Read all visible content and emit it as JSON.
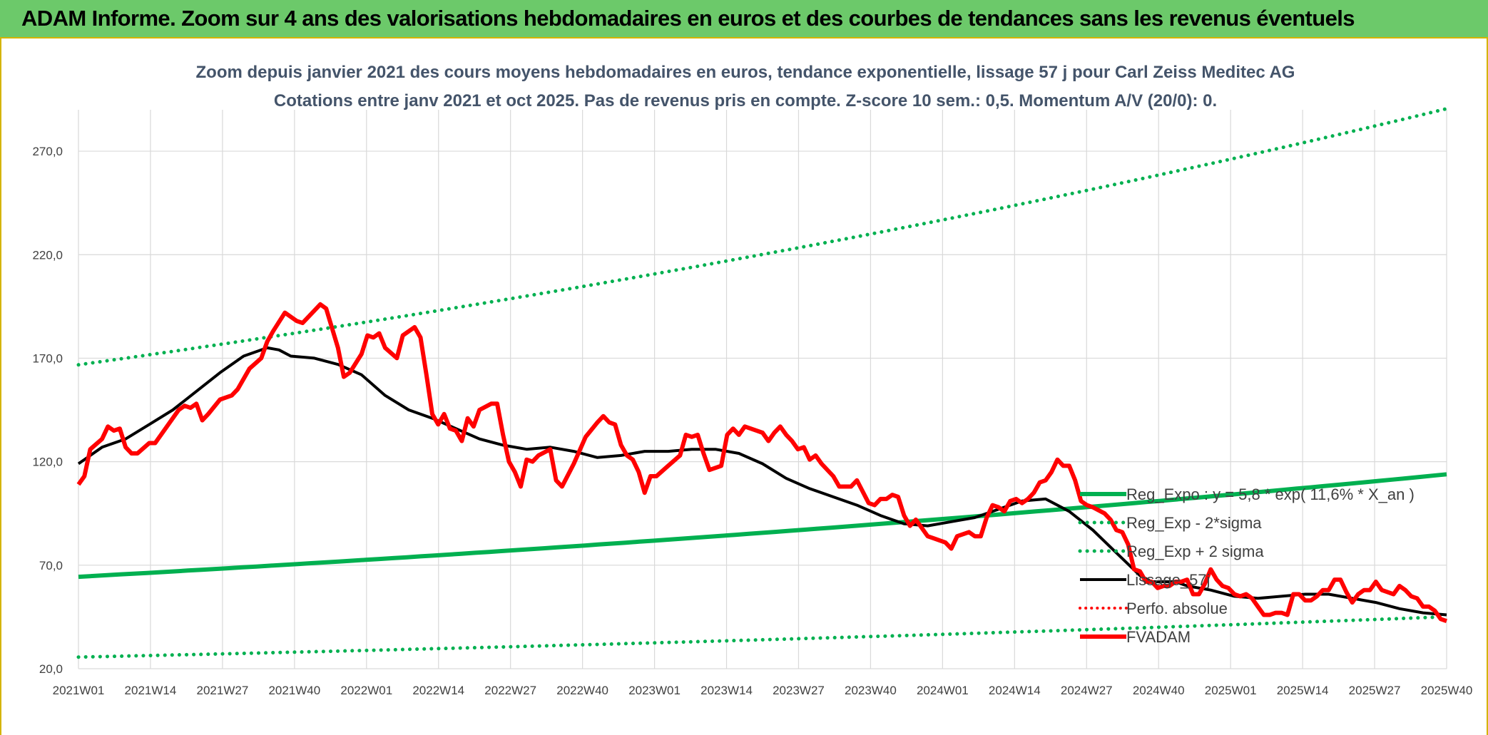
{
  "header": {
    "title": "ADAM Informe. Zoom sur 4 ans des valorisations hebdomadaires en euros et des courbes de tendances sans les revenus éventuels"
  },
  "colors": {
    "banner": "#6cc96a",
    "trend": "#00b050",
    "price": "#ff0000",
    "smooth": "#000000",
    "grid": "#d9d9d9"
  },
  "chart_data": {
    "type": "line",
    "title": "Zoom depuis janvier 2021 des cours moyens hebdomadaires en euros, tendance exponentielle, lissage 57 j pour Carl Zeiss Meditec AG",
    "subtitle": "Cotations entre janv 2021 et oct 2025. Pas de revenus pris en compte. Z-score 10 sem.: 0,5. Momentum A/V (20/0): 0.",
    "ylim": [
      20,
      290
    ],
    "y_ticks": [
      20,
      70,
      120,
      170,
      220,
      270
    ],
    "y_tick_labels": [
      "20,0",
      "70,0",
      "120,0",
      "170,0",
      "220,0",
      "270,0"
    ],
    "x_tick_labels": [
      "2021W01",
      "2021W14",
      "2021W27",
      "2021W40",
      "2022W01",
      "2022W14",
      "2022W27",
      "2022W40",
      "2023W01",
      "2023W14",
      "2023W27",
      "2023W40",
      "2024W01",
      "2024W14",
      "2024W27",
      "2024W40",
      "2025W01",
      "2025W14",
      "2025W27",
      "2025W40"
    ],
    "grid": true,
    "legend_position": "right-middle",
    "legend": [
      {
        "name": "Reg_Expo : y = 5,8 * exp( 11,6% *  X_an )",
        "style": "solid-green"
      },
      {
        "name": "Reg_Exp - 2*sigma",
        "style": "dotted-green"
      },
      {
        "name": "Reg_Exp + 2 sigma",
        "style": "dotted-green"
      },
      {
        "name": "Lissage_57j",
        "style": "solid-black"
      },
      {
        "name": "Perfo. absolue",
        "style": "dotted-red"
      },
      {
        "name": "FVADAM",
        "style": "solid-red"
      }
    ],
    "series": [
      {
        "name": "Reg_Expo",
        "start": 64.4,
        "end": 113.9
      },
      {
        "name": "Reg_Exp - 2*sigma",
        "start": 25.6,
        "end": 45.1
      },
      {
        "name": "Reg_Exp + 2 sigma",
        "start": 166.8,
        "end": 290.5
      },
      {
        "name": "Lissage_57j",
        "points": [
          [
            0,
            119
          ],
          [
            4,
            127
          ],
          [
            8,
            131
          ],
          [
            12,
            138
          ],
          [
            16,
            145
          ],
          [
            20,
            154
          ],
          [
            24,
            163
          ],
          [
            28,
            171
          ],
          [
            32,
            175
          ],
          [
            34,
            174
          ],
          [
            36,
            171
          ],
          [
            40,
            170
          ],
          [
            44,
            167
          ],
          [
            48,
            162
          ],
          [
            52,
            152
          ],
          [
            56,
            145
          ],
          [
            60,
            141
          ],
          [
            64,
            136
          ],
          [
            68,
            131
          ],
          [
            72,
            128
          ],
          [
            76,
            126
          ],
          [
            80,
            127
          ],
          [
            84,
            125
          ],
          [
            88,
            122
          ],
          [
            92,
            123
          ],
          [
            96,
            125
          ],
          [
            100,
            125
          ],
          [
            104,
            126
          ],
          [
            108,
            126
          ],
          [
            112,
            124
          ],
          [
            116,
            119
          ],
          [
            120,
            112
          ],
          [
            124,
            107
          ],
          [
            128,
            103
          ],
          [
            132,
            99
          ],
          [
            136,
            94
          ],
          [
            140,
            90
          ],
          [
            144,
            89
          ],
          [
            148,
            91
          ],
          [
            152,
            93
          ],
          [
            156,
            97
          ],
          [
            160,
            101
          ],
          [
            164,
            102
          ],
          [
            168,
            96
          ],
          [
            172,
            87
          ],
          [
            176,
            76
          ],
          [
            180,
            65
          ],
          [
            182,
            62
          ],
          [
            186,
            62
          ],
          [
            188,
            60
          ],
          [
            192,
            58
          ],
          [
            196,
            55
          ],
          [
            200,
            54
          ],
          [
            204,
            55
          ],
          [
            208,
            56
          ],
          [
            212,
            56
          ],
          [
            216,
            54
          ],
          [
            220,
            52
          ],
          [
            224,
            49
          ],
          [
            228,
            47
          ],
          [
            232,
            46
          ]
        ]
      },
      {
        "name": "FVADAM",
        "points": [
          [
            0,
            109
          ],
          [
            1,
            113
          ],
          [
            2,
            126
          ],
          [
            4,
            131
          ],
          [
            5,
            137
          ],
          [
            6,
            135
          ],
          [
            7,
            136
          ],
          [
            8,
            127
          ],
          [
            9,
            124
          ],
          [
            10,
            124
          ],
          [
            12,
            129
          ],
          [
            13,
            129
          ],
          [
            15,
            137
          ],
          [
            17,
            145
          ],
          [
            18,
            147
          ],
          [
            19,
            146
          ],
          [
            20,
            148
          ],
          [
            21,
            140
          ],
          [
            22,
            143
          ],
          [
            24,
            150
          ],
          [
            26,
            152
          ],
          [
            27,
            155
          ],
          [
            29,
            165
          ],
          [
            31,
            170
          ],
          [
            32,
            178
          ],
          [
            33,
            183
          ],
          [
            35,
            192
          ],
          [
            37,
            188
          ],
          [
            38,
            187
          ],
          [
            40,
            193
          ],
          [
            41,
            196
          ],
          [
            42,
            194
          ],
          [
            44,
            175
          ],
          [
            45,
            161
          ],
          [
            46,
            163
          ],
          [
            48,
            172
          ],
          [
            49,
            181
          ],
          [
            50,
            180
          ],
          [
            51,
            182
          ],
          [
            52,
            175
          ],
          [
            54,
            170
          ],
          [
            55,
            181
          ],
          [
            57,
            185
          ],
          [
            58,
            180
          ],
          [
            59,
            162
          ],
          [
            60,
            143
          ],
          [
            61,
            138
          ],
          [
            62,
            143
          ],
          [
            63,
            136
          ],
          [
            64,
            135
          ],
          [
            65,
            130
          ],
          [
            66,
            141
          ],
          [
            67,
            137
          ],
          [
            68,
            145
          ],
          [
            70,
            148
          ],
          [
            71,
            148
          ],
          [
            72,
            133
          ],
          [
            73,
            120
          ],
          [
            74,
            115
          ],
          [
            75,
            108
          ],
          [
            76,
            121
          ],
          [
            77,
            120
          ],
          [
            78,
            123
          ],
          [
            80,
            126
          ],
          [
            81,
            111
          ],
          [
            82,
            108
          ],
          [
            84,
            119
          ],
          [
            86,
            132
          ],
          [
            88,
            139
          ],
          [
            89,
            142
          ],
          [
            90,
            139
          ],
          [
            91,
            138
          ],
          [
            92,
            128
          ],
          [
            93,
            123
          ],
          [
            94,
            121
          ],
          [
            95,
            115
          ],
          [
            96,
            105
          ],
          [
            97,
            113
          ],
          [
            98,
            113
          ],
          [
            100,
            118
          ],
          [
            102,
            123
          ],
          [
            103,
            133
          ],
          [
            104,
            132
          ],
          [
            105,
            133
          ],
          [
            106,
            124
          ],
          [
            107,
            116
          ],
          [
            108,
            117
          ],
          [
            109,
            118
          ],
          [
            110,
            133
          ],
          [
            111,
            136
          ],
          [
            112,
            133
          ],
          [
            113,
            137
          ],
          [
            115,
            135
          ],
          [
            116,
            134
          ],
          [
            117,
            130
          ],
          [
            118,
            134
          ],
          [
            119,
            137
          ],
          [
            120,
            133
          ],
          [
            121,
            130
          ],
          [
            122,
            126
          ],
          [
            123,
            127
          ],
          [
            124,
            121
          ],
          [
            125,
            123
          ],
          [
            126,
            119
          ],
          [
            128,
            113
          ],
          [
            129,
            108
          ],
          [
            130,
            108
          ],
          [
            131,
            108
          ],
          [
            132,
            111
          ],
          [
            134,
            100
          ],
          [
            135,
            99
          ],
          [
            136,
            102
          ],
          [
            137,
            102
          ],
          [
            138,
            104
          ],
          [
            139,
            103
          ],
          [
            140,
            94
          ],
          [
            141,
            89
          ],
          [
            142,
            92
          ],
          [
            143,
            88
          ],
          [
            144,
            84
          ],
          [
            145,
            83
          ],
          [
            147,
            81
          ],
          [
            148,
            78
          ],
          [
            149,
            84
          ],
          [
            150,
            85
          ],
          [
            151,
            86
          ],
          [
            152,
            84
          ],
          [
            153,
            84
          ],
          [
            154,
            93
          ],
          [
            155,
            99
          ],
          [
            156,
            98
          ],
          [
            157,
            96
          ],
          [
            158,
            101
          ],
          [
            159,
            102
          ],
          [
            160,
            100
          ],
          [
            161,
            102
          ],
          [
            162,
            105
          ],
          [
            163,
            110
          ],
          [
            164,
            111
          ],
          [
            165,
            115
          ],
          [
            166,
            121
          ],
          [
            167,
            118
          ],
          [
            168,
            118
          ],
          [
            169,
            111
          ],
          [
            170,
            101
          ],
          [
            171,
            99
          ],
          [
            172,
            98
          ],
          [
            174,
            95
          ],
          [
            175,
            92
          ],
          [
            176,
            87
          ],
          [
            177,
            86
          ],
          [
            178,
            80
          ],
          [
            179,
            68
          ],
          [
            180,
            67
          ],
          [
            181,
            62
          ],
          [
            182,
            62
          ],
          [
            183,
            59
          ],
          [
            184,
            60
          ],
          [
            185,
            60
          ],
          [
            186,
            62
          ],
          [
            187,
            62
          ],
          [
            188,
            63
          ],
          [
            189,
            56
          ],
          [
            190,
            56
          ],
          [
            191,
            61
          ],
          [
            192,
            68
          ],
          [
            193,
            63
          ],
          [
            194,
            60
          ],
          [
            195,
            59
          ],
          [
            196,
            56
          ],
          [
            197,
            55
          ],
          [
            198,
            56
          ],
          [
            199,
            54
          ],
          [
            200,
            50
          ],
          [
            201,
            46
          ],
          [
            202,
            46
          ],
          [
            203,
            47
          ],
          [
            204,
            47
          ],
          [
            205,
            46
          ],
          [
            206,
            56
          ],
          [
            207,
            56
          ],
          [
            208,
            53
          ],
          [
            209,
            53
          ],
          [
            210,
            55
          ],
          [
            211,
            58
          ],
          [
            212,
            58
          ],
          [
            213,
            63
          ],
          [
            214,
            63
          ],
          [
            215,
            57
          ],
          [
            216,
            52
          ],
          [
            217,
            56
          ],
          [
            218,
            58
          ],
          [
            219,
            58
          ],
          [
            220,
            62
          ],
          [
            221,
            58
          ],
          [
            222,
            57
          ],
          [
            223,
            56
          ],
          [
            224,
            60
          ],
          [
            225,
            58
          ],
          [
            226,
            55
          ],
          [
            227,
            54
          ],
          [
            228,
            50
          ],
          [
            229,
            50
          ],
          [
            230,
            48
          ],
          [
            231,
            44
          ],
          [
            232,
            43
          ]
        ]
      }
    ],
    "x_max_index": 232
  }
}
